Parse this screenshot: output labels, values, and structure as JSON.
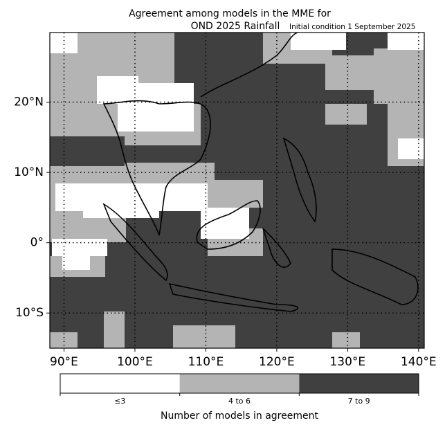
{
  "title": {
    "line1": "Agreement among models in the MME for",
    "line2": "OND 2025  Rainfall",
    "note": "Initial condition 1 September 2025"
  },
  "map": {
    "xlim": [
      88,
      140.8
    ],
    "ylim": [
      -15,
      29.9
    ],
    "xticks": [
      {
        "value": 90,
        "label": "90°E"
      },
      {
        "value": 100,
        "label": "100°E"
      },
      {
        "value": 110,
        "label": "110°E"
      },
      {
        "value": 120,
        "label": "120°E"
      },
      {
        "value": 130,
        "label": "130°E"
      },
      {
        "value": 140,
        "label": "140°E"
      }
    ],
    "yticks": [
      {
        "value": 20,
        "label": "20°N"
      },
      {
        "value": 10,
        "label": "10°N"
      },
      {
        "value": 0,
        "label": "0°"
      },
      {
        "value": -10,
        "label": "10°S"
      }
    ],
    "grid": true
  },
  "colorbar": {
    "title": "Number of models in agreement",
    "classes": [
      {
        "label": "≤3",
        "color": "#ffffff"
      },
      {
        "label": "4 to 6",
        "color": "#b4b4b4"
      },
      {
        "label": "7 to 9",
        "color": "#404040"
      }
    ]
  }
}
